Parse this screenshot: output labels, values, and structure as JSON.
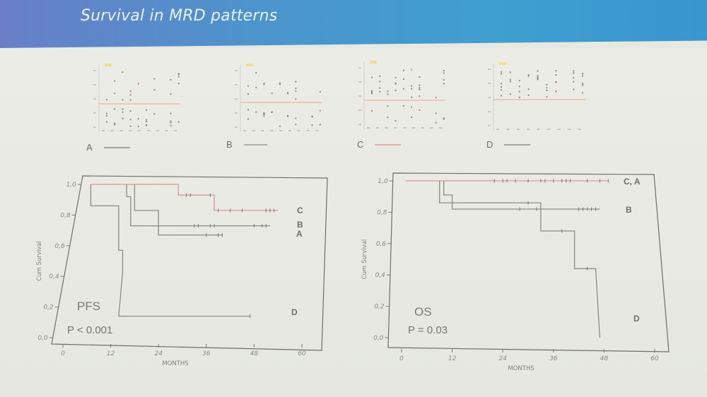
{
  "slide": {
    "title": "Survival in MRD patterns"
  },
  "patterns": [
    {
      "letter": "A",
      "line_color": "#8a8a86"
    },
    {
      "letter": "B",
      "line_color": "#9a9a96"
    },
    {
      "letter": "C",
      "line_color": "#e39a96"
    },
    {
      "letter": "D",
      "line_color": "#8a8a86"
    }
  ],
  "colors": {
    "curve_gray": "#8b8b87",
    "curve_red": "#d99a95",
    "threshold_line": "#f0b49a"
  },
  "chart_data": [
    {
      "type": "line",
      "subtype": "kaplan-meier",
      "title": "PFS",
      "annotation": "P < 0.001",
      "xlabel": "MONTHS",
      "ylabel": "Cum Survival",
      "xlim": [
        0,
        60
      ],
      "ylim": [
        0,
        1
      ],
      "xticks": [
        "0",
        "12",
        "24",
        "36",
        "48",
        "60"
      ],
      "yticks": [
        "0,0",
        "0,2",
        "0,4",
        "0,6",
        "0,8",
        "1,0"
      ],
      "series": [
        {
          "name": "C",
          "color": "red",
          "steps": [
            [
              7,
              1.0
            ],
            [
              29,
              1.0
            ],
            [
              29,
              0.93
            ],
            [
              38,
              0.93
            ],
            [
              38,
              0.83
            ],
            [
              54,
              0.83
            ]
          ],
          "censored": [
            31,
            32,
            37,
            39,
            42,
            45,
            51,
            52,
            53
          ]
        },
        {
          "name": "B",
          "color": "gray",
          "steps": [
            [
              16,
              1.0
            ],
            [
              16,
              0.92
            ],
            [
              17,
              0.92
            ],
            [
              17,
              0.73
            ],
            [
              52,
              0.73
            ]
          ],
          "censored": [
            33,
            34,
            37,
            38,
            48,
            50,
            51
          ]
        },
        {
          "name": "A",
          "color": "gray",
          "steps": [
            [
              18,
              1.0
            ],
            [
              18,
              0.83
            ],
            [
              24,
              0.83
            ],
            [
              24,
              0.67
            ],
            [
              40,
              0.67
            ]
          ],
          "censored": [
            36,
            39,
            40
          ]
        },
        {
          "name": "D",
          "color": "gray",
          "steps": [
            [
              7,
              1.0
            ],
            [
              7,
              0.86
            ],
            [
              14,
              0.86
            ],
            [
              14,
              0.57
            ],
            [
              15,
              0.57
            ],
            [
              15,
              0.43
            ],
            [
              14,
              0.14
            ],
            [
              47,
              0.14
            ]
          ],
          "censored": [
            47
          ]
        }
      ]
    },
    {
      "type": "line",
      "subtype": "kaplan-meier",
      "title": "OS",
      "annotation": "P = 0.03",
      "xlabel": "MONTHS",
      "ylabel": "Cum Survival",
      "xlim": [
        0,
        60
      ],
      "ylim": [
        0,
        1
      ],
      "xticks": [
        "0",
        "12",
        "24",
        "36",
        "48",
        "60"
      ],
      "yticks": [
        "0,0",
        "0,2",
        "0,4",
        "0,6",
        "0,8",
        "1,0"
      ],
      "series": [
        {
          "name": "C, A",
          "color": "red",
          "steps": [
            [
              1,
              1.0
            ],
            [
              49,
              1.0
            ]
          ],
          "censored": [
            22,
            24,
            25,
            27,
            30,
            33,
            34,
            36,
            38,
            39,
            40,
            44,
            47,
            49
          ]
        },
        {
          "name": "B",
          "color": "gray",
          "steps": [
            [
              10,
              1.0
            ],
            [
              10,
              0.91
            ],
            [
              12,
              0.91
            ],
            [
              12,
              0.82
            ],
            [
              47,
              0.82
            ]
          ],
          "censored": [
            28,
            32,
            42,
            43,
            44,
            45,
            46
          ]
        },
        {
          "name": "D",
          "color": "gray",
          "steps": [
            [
              9,
              1.0
            ],
            [
              9,
              0.86
            ],
            [
              33,
              0.86
            ],
            [
              33,
              0.68
            ],
            [
              41,
              0.68
            ],
            [
              41,
              0.44
            ],
            [
              46,
              0.44
            ],
            [
              47,
              0.0
            ]
          ],
          "censored": [
            30,
            38,
            44
          ]
        }
      ],
      "labels": {
        "D": "D"
      }
    }
  ]
}
